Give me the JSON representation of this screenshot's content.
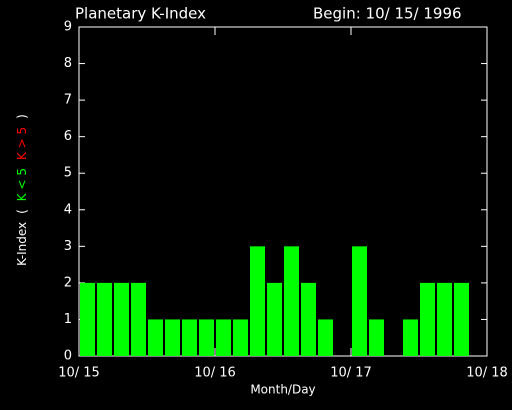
{
  "chart_data": {
    "type": "bar",
    "title": "Planetary K-Index",
    "subtitle": "Begin: 10/ 15/ 1996",
    "xlabel": "Month/Day",
    "ylabel_parts": [
      {
        "text": "K-Index",
        "color": "#ffffff"
      },
      {
        "text": "(",
        "color": "#ffffff"
      },
      {
        "text": "K < 5",
        "color": "#00ff00"
      },
      {
        "text": "K > 5",
        "color": "#ff0000"
      },
      {
        "text": ")",
        "color": "#ffffff"
      }
    ],
    "x": [
      0,
      3,
      6,
      9,
      12,
      15,
      18,
      21,
      24,
      27,
      30,
      33,
      36,
      39,
      42,
      45,
      48,
      51,
      54,
      57,
      60,
      63,
      66,
      69
    ],
    "values": [
      2,
      2,
      2,
      2,
      1,
      1,
      1,
      1,
      1,
      1,
      3,
      2,
      3,
      2,
      1,
      0,
      3,
      1,
      0,
      1,
      2,
      2,
      2,
      null
    ],
    "bar_width": 3,
    "color": "#00ff00",
    "xlim": [
      0,
      72
    ],
    "xticks": [
      {
        "value": 0,
        "label": "10/ 15"
      },
      {
        "value": 24,
        "label": "10/ 16"
      },
      {
        "value": 48,
        "label": "10/ 17"
      },
      {
        "value": 72,
        "label": "10/ 18"
      }
    ],
    "ylim": [
      0,
      9
    ],
    "yticks": [
      0,
      1,
      2,
      3,
      4,
      5,
      6,
      7,
      8,
      9
    ]
  }
}
